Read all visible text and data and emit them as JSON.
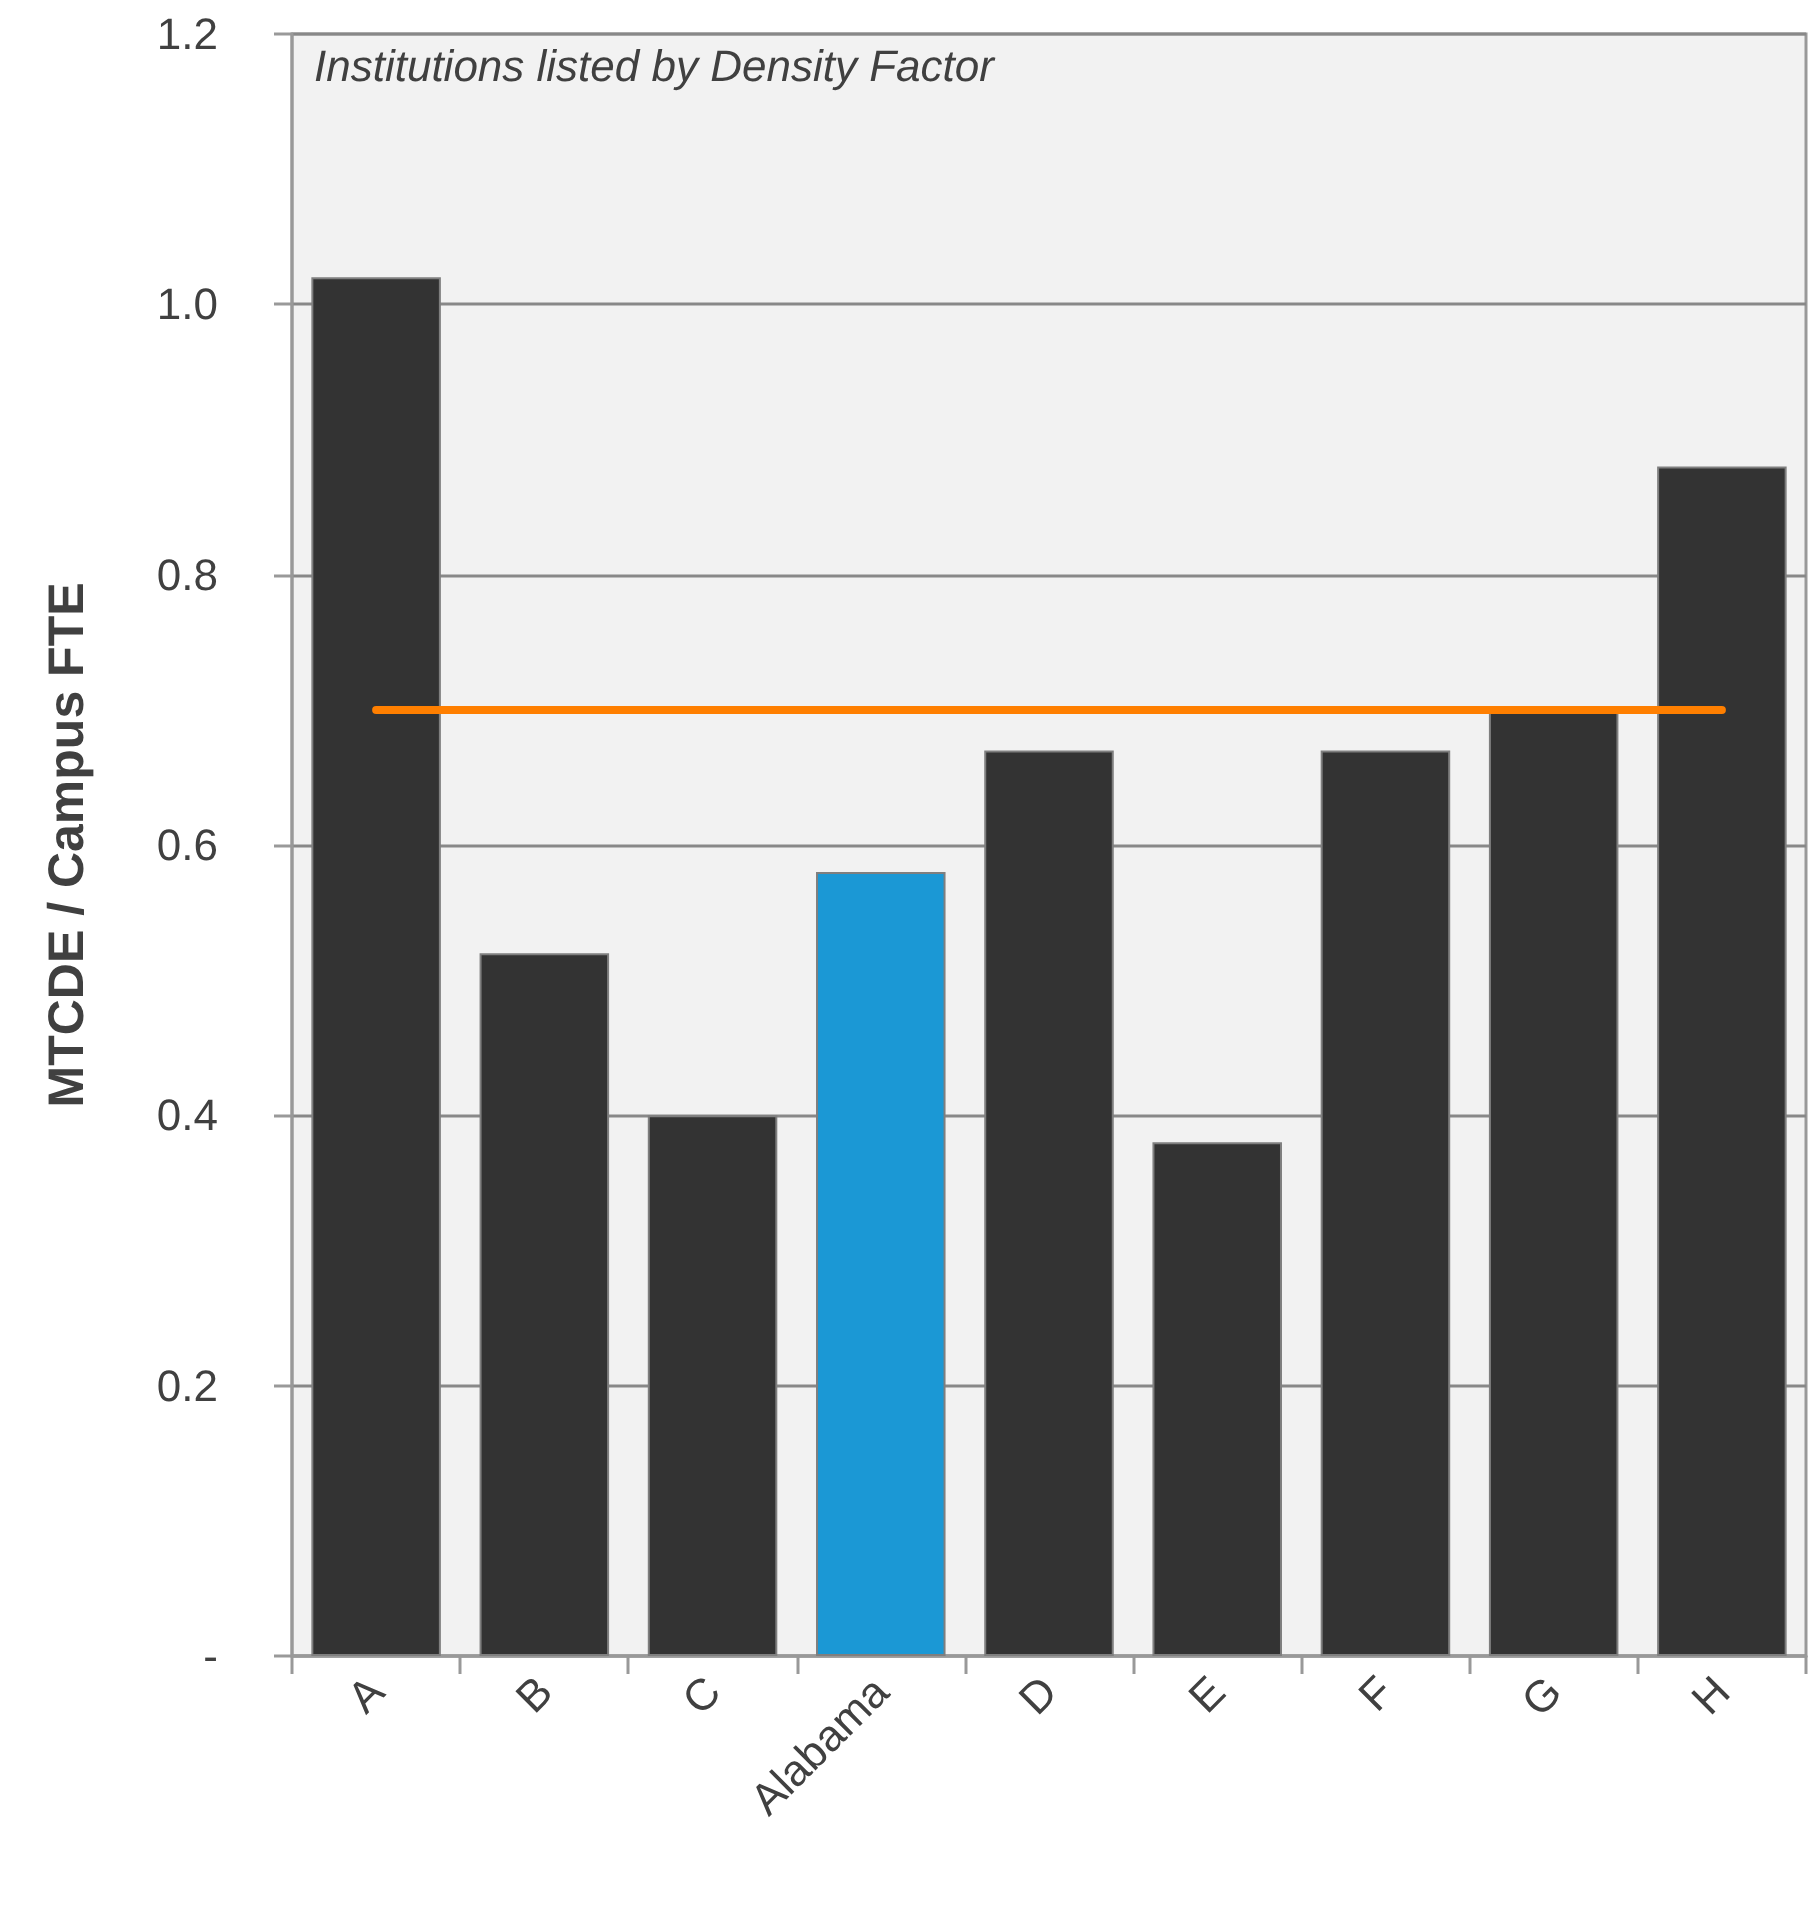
{
  "chart_data": {
    "type": "bar",
    "ylabel": "MTCDE / Campus FTE",
    "annotations": [
      "Institutions listed by Density Factor"
    ],
    "categories": [
      "A",
      "B",
      "C",
      "Alabama",
      "D",
      "E",
      "F",
      "G",
      "H"
    ],
    "values": [
      1.02,
      0.52,
      0.4,
      0.58,
      0.67,
      0.38,
      0.67,
      0.7,
      0.88
    ],
    "colors": [
      "#333333",
      "#333333",
      "#333333",
      "#1b98d5",
      "#333333",
      "#333333",
      "#333333",
      "#333333",
      "#333333"
    ],
    "ylim": [
      0,
      1.2
    ],
    "yticks": [
      {
        "value": 0,
        "label": "-"
      },
      0.2,
      0.4,
      0.6,
      0.8,
      {
        "value": 1,
        "label": "1.0"
      },
      1.2
    ],
    "grid": "y",
    "ref_lines": [
      {
        "axis": "y",
        "value": 0.7,
        "color": "#ff7f00"
      }
    ]
  }
}
